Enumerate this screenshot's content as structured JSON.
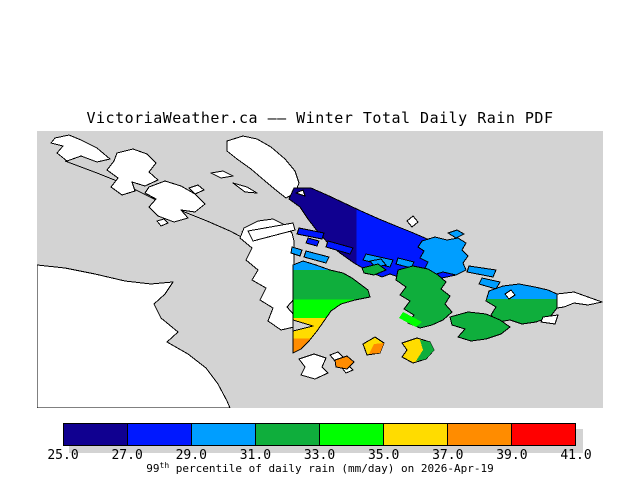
{
  "title": "VictoriaWeather.ca —— Winter Total Daily Rain PDF",
  "colors": {
    "page_bg": "#FFFFFF",
    "sea": "#D3D3D3",
    "land_no_data": "#FFFFFF",
    "coastline": "#000000",
    "shadow": "#D3D3D3",
    "navy": "#100090",
    "blue": "#0018FF",
    "light_blue": "#009EFF",
    "green": "#0FAE3C",
    "bright_green": "#00FF00",
    "yellow": "#FFDC00",
    "orange": "#FF8C00",
    "red": "#FF0000"
  },
  "colorbar": {
    "min": 25.0,
    "max": 41.0,
    "interval": 2.0,
    "unit": "mm/day",
    "tick_labels": [
      "25.0",
      "27.0",
      "29.0",
      "31.0",
      "33.0",
      "35.0",
      "37.0",
      "39.0",
      "41.0"
    ],
    "segments": [
      {
        "range": "25.0-27.0",
        "color": "#100090"
      },
      {
        "range": "27.0-29.0",
        "color": "#0018FF"
      },
      {
        "range": "29.0-31.0",
        "color": "#009EFF"
      },
      {
        "range": "31.0-33.0",
        "color": "#0FAE3C"
      },
      {
        "range": "33.0-35.0",
        "color": "#00FF00"
      },
      {
        "range": "35.0-37.0",
        "color": "#FFDC00"
      },
      {
        "range": "37.0-39.0",
        "color": "#FF8C00"
      },
      {
        "range": "39.0-41.0",
        "color": "#FF0000"
      }
    ],
    "caption": {
      "base": "99",
      "sup": "th",
      "rest": " percentile of daily rain (mm/day) on 2026-Apr-19"
    }
  }
}
